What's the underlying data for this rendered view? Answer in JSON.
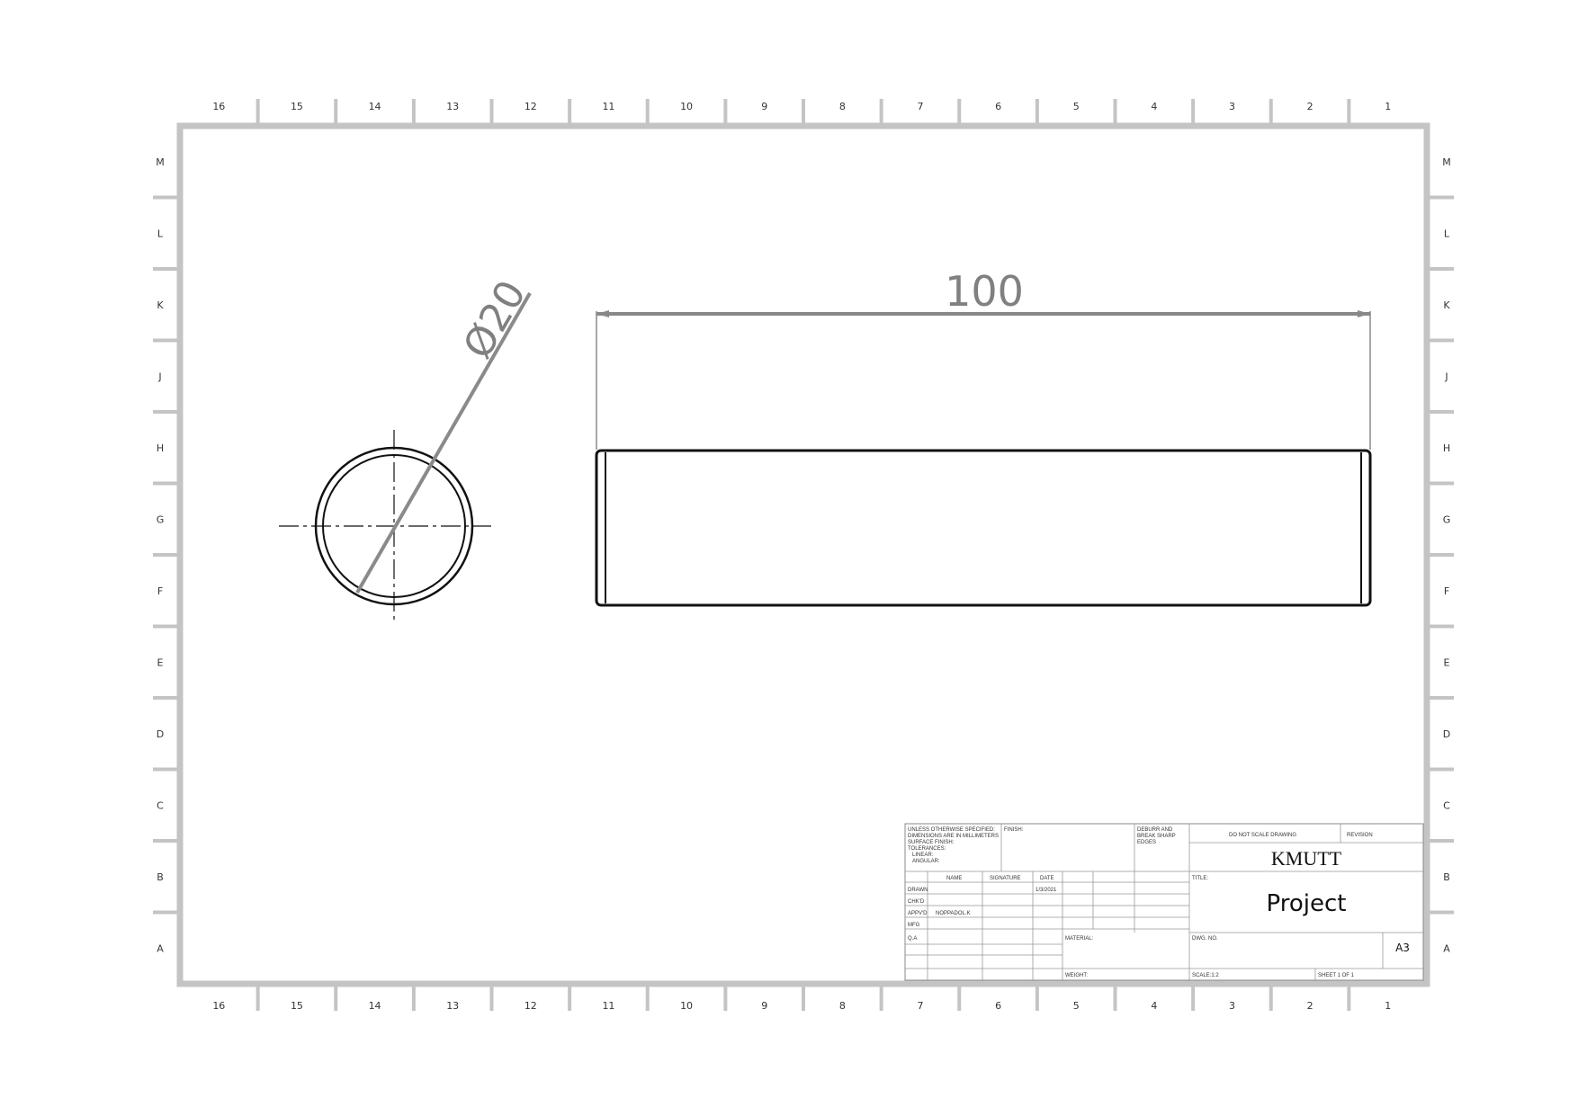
{
  "sheet": {
    "column_labels": [
      "16",
      "15",
      "14",
      "13",
      "12",
      "11",
      "10",
      "9",
      "8",
      "7",
      "6",
      "5",
      "4",
      "3",
      "2",
      "1"
    ],
    "row_labels": [
      "M",
      "L",
      "K",
      "J",
      "H",
      "G",
      "F",
      "E",
      "D",
      "C",
      "B",
      "A"
    ]
  },
  "views": {
    "diameter_dimension": "Ø20",
    "length_dimension": "100"
  },
  "title_block": {
    "general_notes": [
      "UNLESS OTHERWISE SPECIFIED:",
      "DIMENSIONS ARE IN MILLIMETERS",
      "SURFACE FINISH:",
      "TOLERANCES:",
      "LINEAR:",
      "ANGULAR:"
    ],
    "finish_label": "FINISH:",
    "deburr_note": [
      "DEBURR AND",
      "BREAK SHARP",
      "EDGES"
    ],
    "do_not_scale": "DO NOT SCALE DRAWING",
    "revision_label": "REVISION",
    "company": "KMUTT",
    "column_headers": {
      "name": "NAME",
      "signature": "SIGNATURE",
      "date": "DATE"
    },
    "rows": [
      {
        "role": "DRAWN",
        "name": "",
        "date": "1/3/2021"
      },
      {
        "role": "CHK'D",
        "name": "",
        "date": ""
      },
      {
        "role": "APPV'D",
        "name": "NOPPADOL.K",
        "date": ""
      },
      {
        "role": "MFG",
        "name": "",
        "date": ""
      },
      {
        "role": "Q.A",
        "name": "",
        "date": ""
      }
    ],
    "material_label": "MATERIAL:",
    "weight_label": "WEIGHT:",
    "title_label": "TITLE:",
    "title": "Project",
    "dwg_no_label": "DWG. NO.",
    "size": "A3",
    "scale": "SCALE:1:2",
    "sheet": "SHEET 1 OF 1"
  }
}
